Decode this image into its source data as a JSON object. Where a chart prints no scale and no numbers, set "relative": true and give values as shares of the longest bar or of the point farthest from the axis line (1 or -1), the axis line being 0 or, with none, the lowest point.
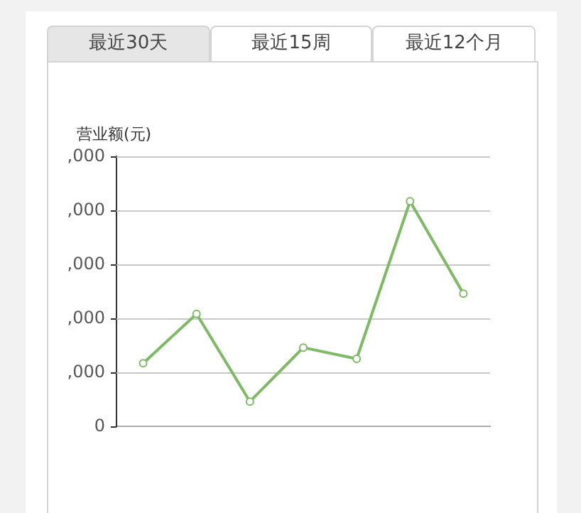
{
  "chart_data": {
    "type": "line",
    "ylabel": "营业额(元)",
    "relative": true,
    "annotations": [
      "最近30天",
      "最近15周",
      "最近12个月",
      "0",
      ",000",
      ",000",
      ",000",
      ",000",
      ",000"
    ],
    "categories": [
      null,
      null,
      null,
      null,
      null,
      null,
      null
    ],
    "series": [
      {
        "color": "#7cbb64",
        "values": [
          0.28,
          0.5,
          0.11,
          0.35,
          0.3,
          1,
          0.59
        ]
      }
    ],
    "grid": "y",
    "legend": false,
    "marker": "circle",
    "line_style": "solid"
  }
}
